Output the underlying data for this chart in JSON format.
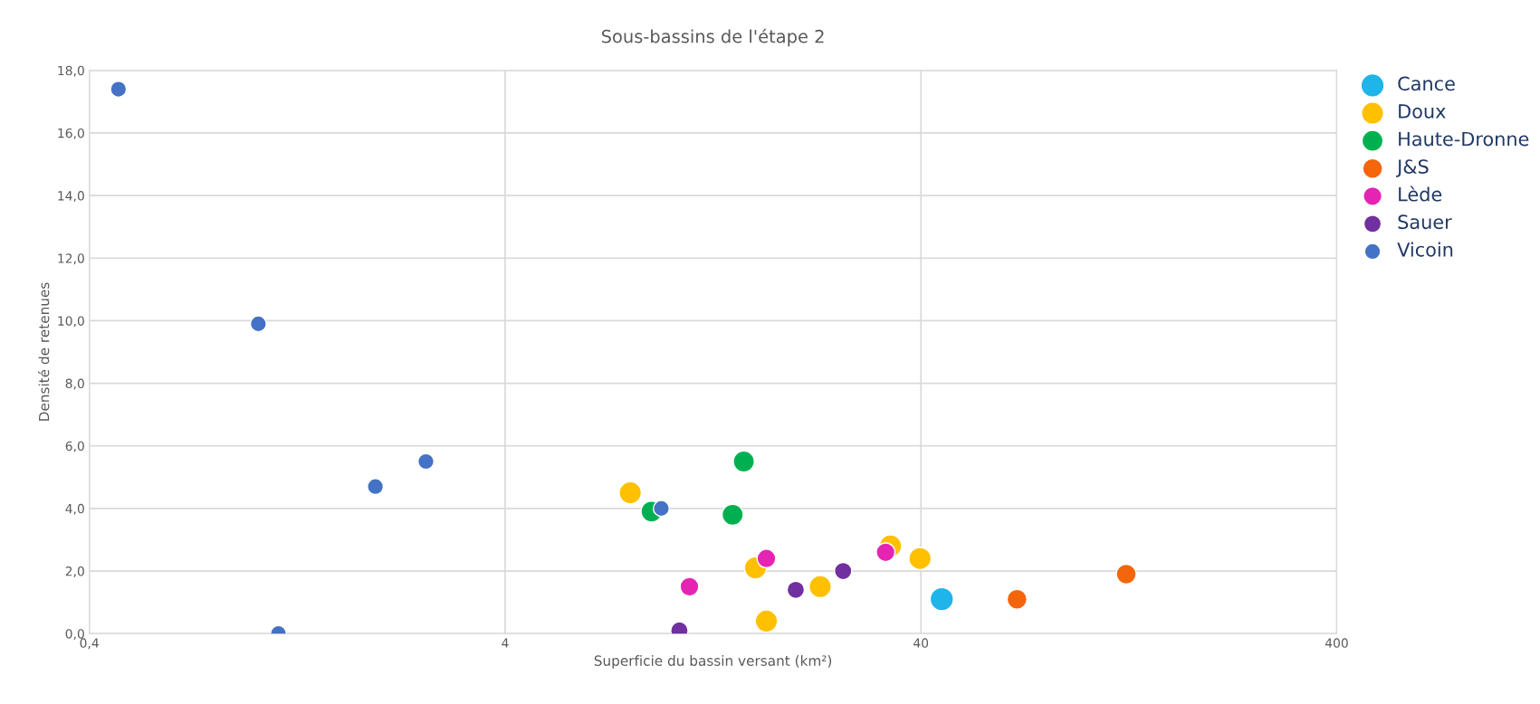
{
  "chart_data": {
    "type": "scatter",
    "title": "Sous-bassins de l'étape 2",
    "xlabel": "Superficie du bassin versant (km²)",
    "ylabel": "Densité de retenues",
    "log": "x",
    "grid": true,
    "legend": "right",
    "marker": "circle",
    "xlim": [
      0.4,
      400
    ],
    "xticks": [
      {
        "value": 0.4,
        "label": "0,4"
      },
      4,
      40,
      400
    ],
    "ylim": [
      0,
      18
    ],
    "yticks": [
      {
        "value": 0,
        "label": "0,0"
      },
      {
        "value": 2,
        "label": "2,0"
      },
      {
        "value": 4,
        "label": "4,0"
      },
      {
        "value": 6,
        "label": "6,0"
      },
      {
        "value": 8,
        "label": "8,0"
      },
      {
        "value": 10,
        "label": "10,0"
      },
      {
        "value": 12,
        "label": "12,0"
      },
      {
        "value": 14,
        "label": "14,0"
      },
      {
        "value": 16,
        "label": "16,0"
      },
      {
        "value": 18,
        "label": "18,0"
      }
    ],
    "series": [
      {
        "name": "Cance",
        "color": "#1fb4ea",
        "x": [
          44.9
        ],
        "values": [
          1.1
        ]
      },
      {
        "name": "Doux",
        "color": "#ffc000",
        "x": [
          8.0,
          16.0,
          17.0,
          22.9,
          33.8,
          39.8
        ],
        "values": [
          4.5,
          2.1,
          0.4,
          1.5,
          2.8,
          2.4
        ]
      },
      {
        "name": "Haute-Dronne",
        "color": "#00b050",
        "x": [
          9.0,
          14.1,
          15.0
        ],
        "values": [
          3.9,
          3.8,
          5.5
        ]
      },
      {
        "name": "J&S",
        "color": "#f4650c",
        "x": [
          68.1,
          124.7
        ],
        "values": [
          1.1,
          1.9
        ]
      },
      {
        "name": "Lède",
        "color": "#e524b4",
        "x": [
          11.1,
          17.0,
          32.9
        ],
        "values": [
          1.5,
          2.4,
          2.6
        ]
      },
      {
        "name": "Sauer",
        "color": "#7030a0",
        "x": [
          10.5,
          20.0,
          26.0
        ],
        "values": [
          0.1,
          1.4,
          2.0
        ]
      },
      {
        "name": "Vicoin",
        "color": "#4472c4",
        "x": [
          0.47,
          1.02,
          1.14,
          1.95,
          2.58,
          9.5
        ],
        "values": [
          17.4,
          9.9,
          0.0,
          4.7,
          5.5,
          4.0
        ]
      }
    ]
  }
}
